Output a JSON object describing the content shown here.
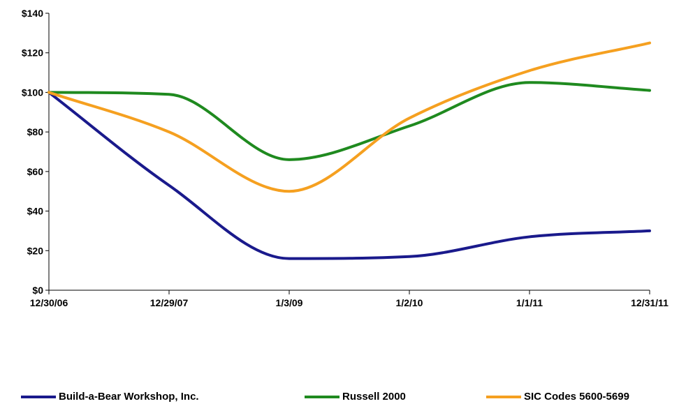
{
  "chart_data": {
    "type": "line",
    "categories": [
      "12/30/06",
      "12/29/07",
      "1/3/09",
      "1/2/10",
      "1/1/11",
      "12/31/11"
    ],
    "y_ticks": [
      "$0",
      "$20",
      "$40",
      "$60",
      "$80",
      "$100",
      "$120",
      "$140"
    ],
    "ylim": [
      0,
      140
    ],
    "grid": false,
    "legend_position": "bottom",
    "series": [
      {
        "name": "Build-a-Bear Workshop, Inc.",
        "color": "#1a1a8c",
        "values": [
          100,
          53,
          16,
          17,
          27,
          30
        ]
      },
      {
        "name": "Russell 2000",
        "color": "#1f8a1f",
        "values": [
          100,
          99,
          66,
          83,
          105,
          101
        ]
      },
      {
        "name": "SIC Codes 5600-5699",
        "color": "#f5a020",
        "values": [
          100,
          80,
          50,
          87,
          111,
          125
        ]
      }
    ]
  }
}
